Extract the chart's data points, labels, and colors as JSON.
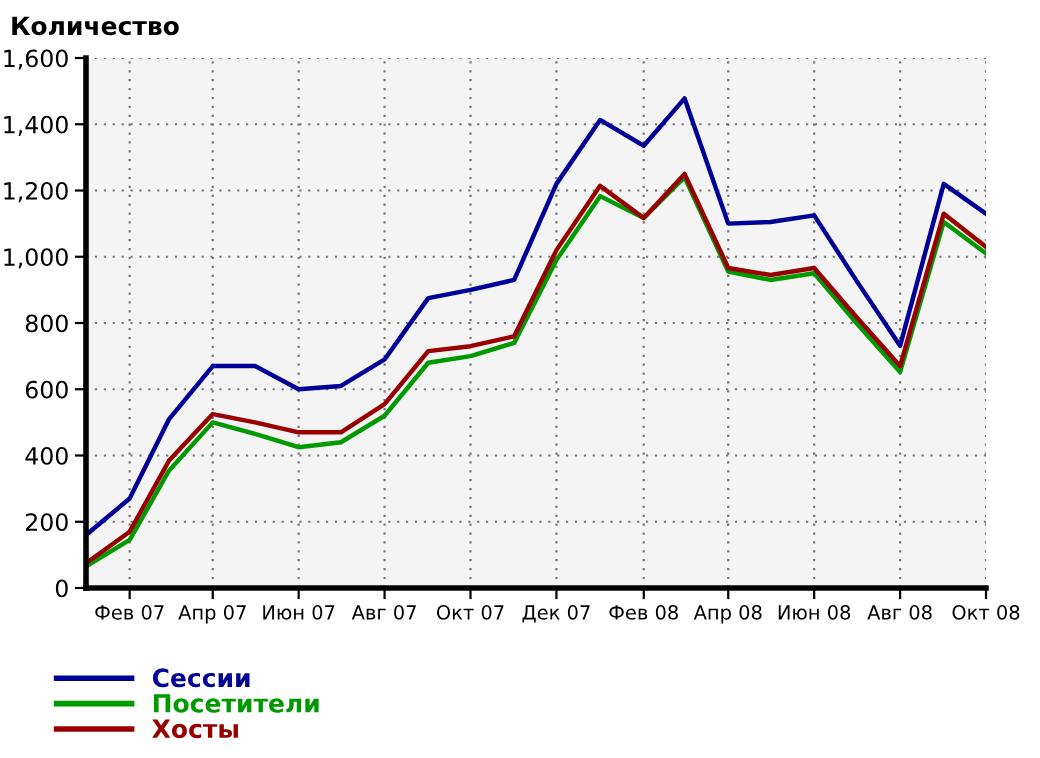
{
  "chart_data": {
    "type": "line",
    "title": "Количество",
    "x": [
      "2007-01",
      "2007-02",
      "2007-03",
      "2007-04",
      "2007-05",
      "2007-06",
      "2007-07",
      "2007-08",
      "2007-09",
      "2007-10",
      "2007-11",
      "2007-12",
      "2008-01",
      "2008-02",
      "2008-03",
      "2008-04",
      "2008-05",
      "2008-06",
      "2008-07",
      "2008-08",
      "2008-09",
      "2008-10"
    ],
    "series": [
      {
        "name": "Сессии",
        "color": "#000099",
        "values": [
          160,
          270,
          510,
          670,
          670,
          600,
          610,
          690,
          875,
          900,
          930,
          1220,
          1413,
          1335,
          1478,
          1100,
          1105,
          1125,
          928,
          731,
          1220,
          1130
        ]
      },
      {
        "name": "Посетители",
        "color": "#009900",
        "values": [
          65,
          145,
          355,
          500,
          465,
          425,
          440,
          520,
          680,
          700,
          740,
          990,
          1183,
          1117,
          1240,
          955,
          930,
          950,
          800,
          652,
          1105,
          1010
        ]
      },
      {
        "name": "Хосты",
        "color": "#990000",
        "values": [
          75,
          170,
          385,
          525,
          500,
          470,
          470,
          555,
          715,
          730,
          760,
          1020,
          1214,
          1117,
          1250,
          966,
          945,
          966,
          818,
          670,
          1130,
          1030
        ]
      }
    ],
    "xlim": [
      "2007-01",
      "2008-10"
    ],
    "xticks": [
      {
        "value": "2007-02",
        "label": "Фев 07"
      },
      {
        "value": "2007-04",
        "label": "Апр 07"
      },
      {
        "value": "2007-06",
        "label": "Июн 07"
      },
      {
        "value": "2007-08",
        "label": "Авг 07"
      },
      {
        "value": "2007-10",
        "label": "Окт 07"
      },
      {
        "value": "2007-12",
        "label": "Дек 07"
      },
      {
        "value": "2008-02",
        "label": "Фев 08"
      },
      {
        "value": "2008-04",
        "label": "Апр 08"
      },
      {
        "value": "2008-06",
        "label": "Июн 08"
      },
      {
        "value": "2008-08",
        "label": "Авг 08"
      },
      {
        "value": "2008-10",
        "label": "Окт 08"
      }
    ],
    "ylim": [
      0,
      1600
    ],
    "yticks": [
      0,
      200,
      400,
      600,
      800,
      {
        "value": 1000,
        "label": "1,000"
      },
      {
        "value": 1200,
        "label": "1,200"
      },
      {
        "value": 1400,
        "label": "1,400"
      },
      {
        "value": 1600,
        "label": "1,600"
      }
    ],
    "grid": true,
    "legend": "bottom left",
    "marker": "none",
    "line_style": "solid"
  }
}
